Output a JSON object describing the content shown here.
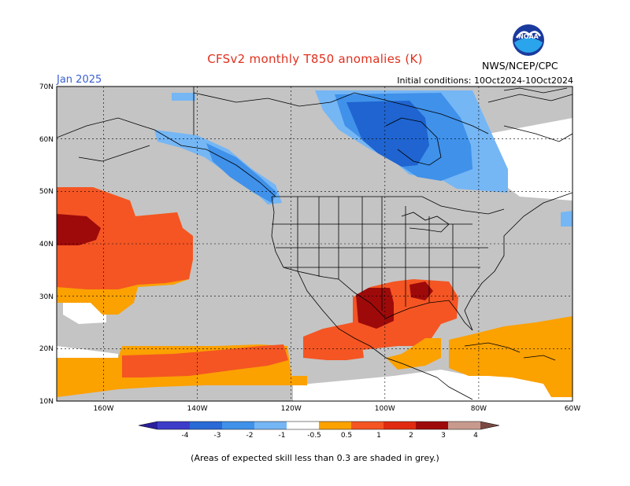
{
  "header": {
    "title": "CFSv2 monthly T850 anomalies (K)",
    "month": "Jan 2025",
    "initial_conditions": "Initial conditions: 10Oct2024-10Oct2024",
    "org": "NWS/NCEP/CPC",
    "logo_text": "NOAA"
  },
  "axes": {
    "lat_labels": [
      "70N",
      "60N",
      "50N",
      "40N",
      "30N",
      "20N",
      "10N"
    ],
    "lon_labels": [
      "160W",
      "140W",
      "120W",
      "100W",
      "80W",
      "60W"
    ]
  },
  "colorbar": {
    "labels": [
      "-4",
      "-3",
      "-2",
      "-1",
      "-0.5",
      "0.5",
      "1",
      "2",
      "3",
      "4"
    ],
    "colors": [
      "#2b1f9e",
      "#3d3cc9",
      "#2a6ad6",
      "#3f91ea",
      "#75b6f5",
      "#ffffff",
      "#fba100",
      "#f45523",
      "#e02b10",
      "#9e0a0a",
      "#c89a8e",
      "#7a4a42"
    ]
  },
  "legend_note": "(Areas of expected skill less than 0.3 are shaded in grey.)",
  "colors": {
    "grey": "#c4c4c4",
    "light_blue": "#75b6f5",
    "mid_blue": "#3f91ea",
    "dark_blue": "#1f64d0",
    "orange": "#fba100",
    "red_orange": "#f45523",
    "dark_red": "#9e0a0a"
  }
}
